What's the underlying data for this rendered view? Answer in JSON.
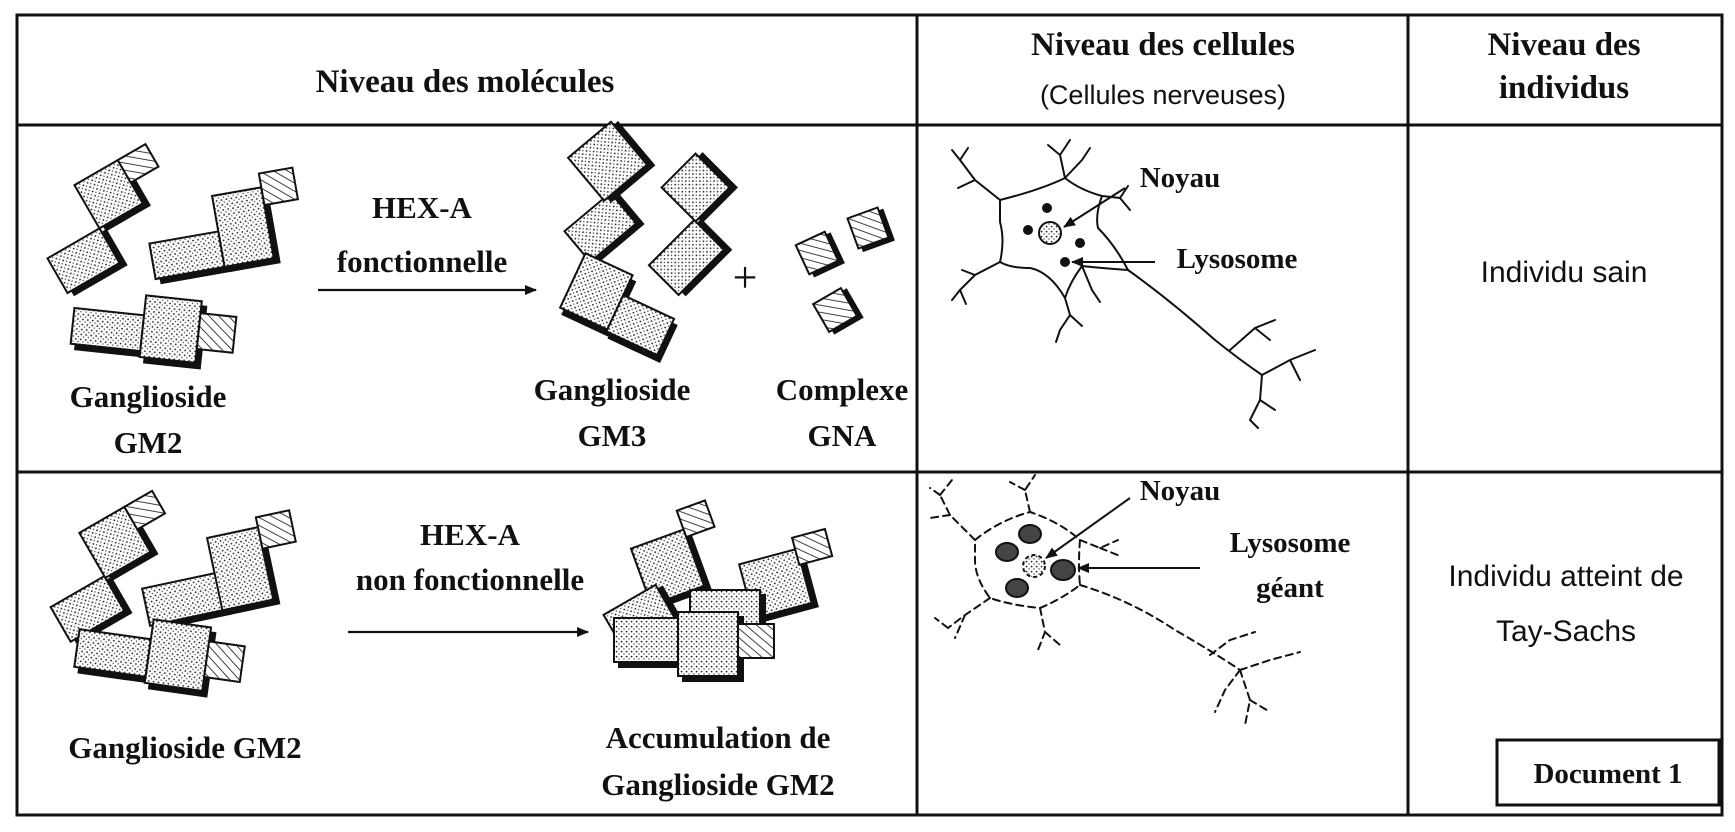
{
  "header": {
    "molecules": "Niveau des molécules",
    "cells_title": "Niveau des cellules",
    "cells_subtitle": "(Cellules nerveuses)",
    "individuals_line1": "Niveau des",
    "individuals_line2": "individus"
  },
  "row_healthy": {
    "substrate_line1": "Ganglioside",
    "substrate_line2": "GM2",
    "enzyme_line1": "HEX-A",
    "enzyme_line2": "fonctionnelle",
    "plus": "+",
    "product1_line1": "Ganglioside",
    "product1_line2": "GM3",
    "product2_line1": "Complexe",
    "product2_line2": "GNA",
    "nucleus_label": "Noyau",
    "lysosome_label": "Lysosome",
    "individual": "Individu sain"
  },
  "row_disease": {
    "substrate": "Ganglioside GM2",
    "enzyme_line1": "HEX-A",
    "enzyme_line2": "non fonctionnelle",
    "result_line1": "Accumulation de",
    "result_line2": "Ganglioside GM2",
    "nucleus_label": "Noyau",
    "lysosome_line1": "Lysosome",
    "lysosome_line2": "géant",
    "individual_line1": "Individu atteint de",
    "individual_line2": "Tay-Sachs"
  },
  "document_label": "Document 1"
}
